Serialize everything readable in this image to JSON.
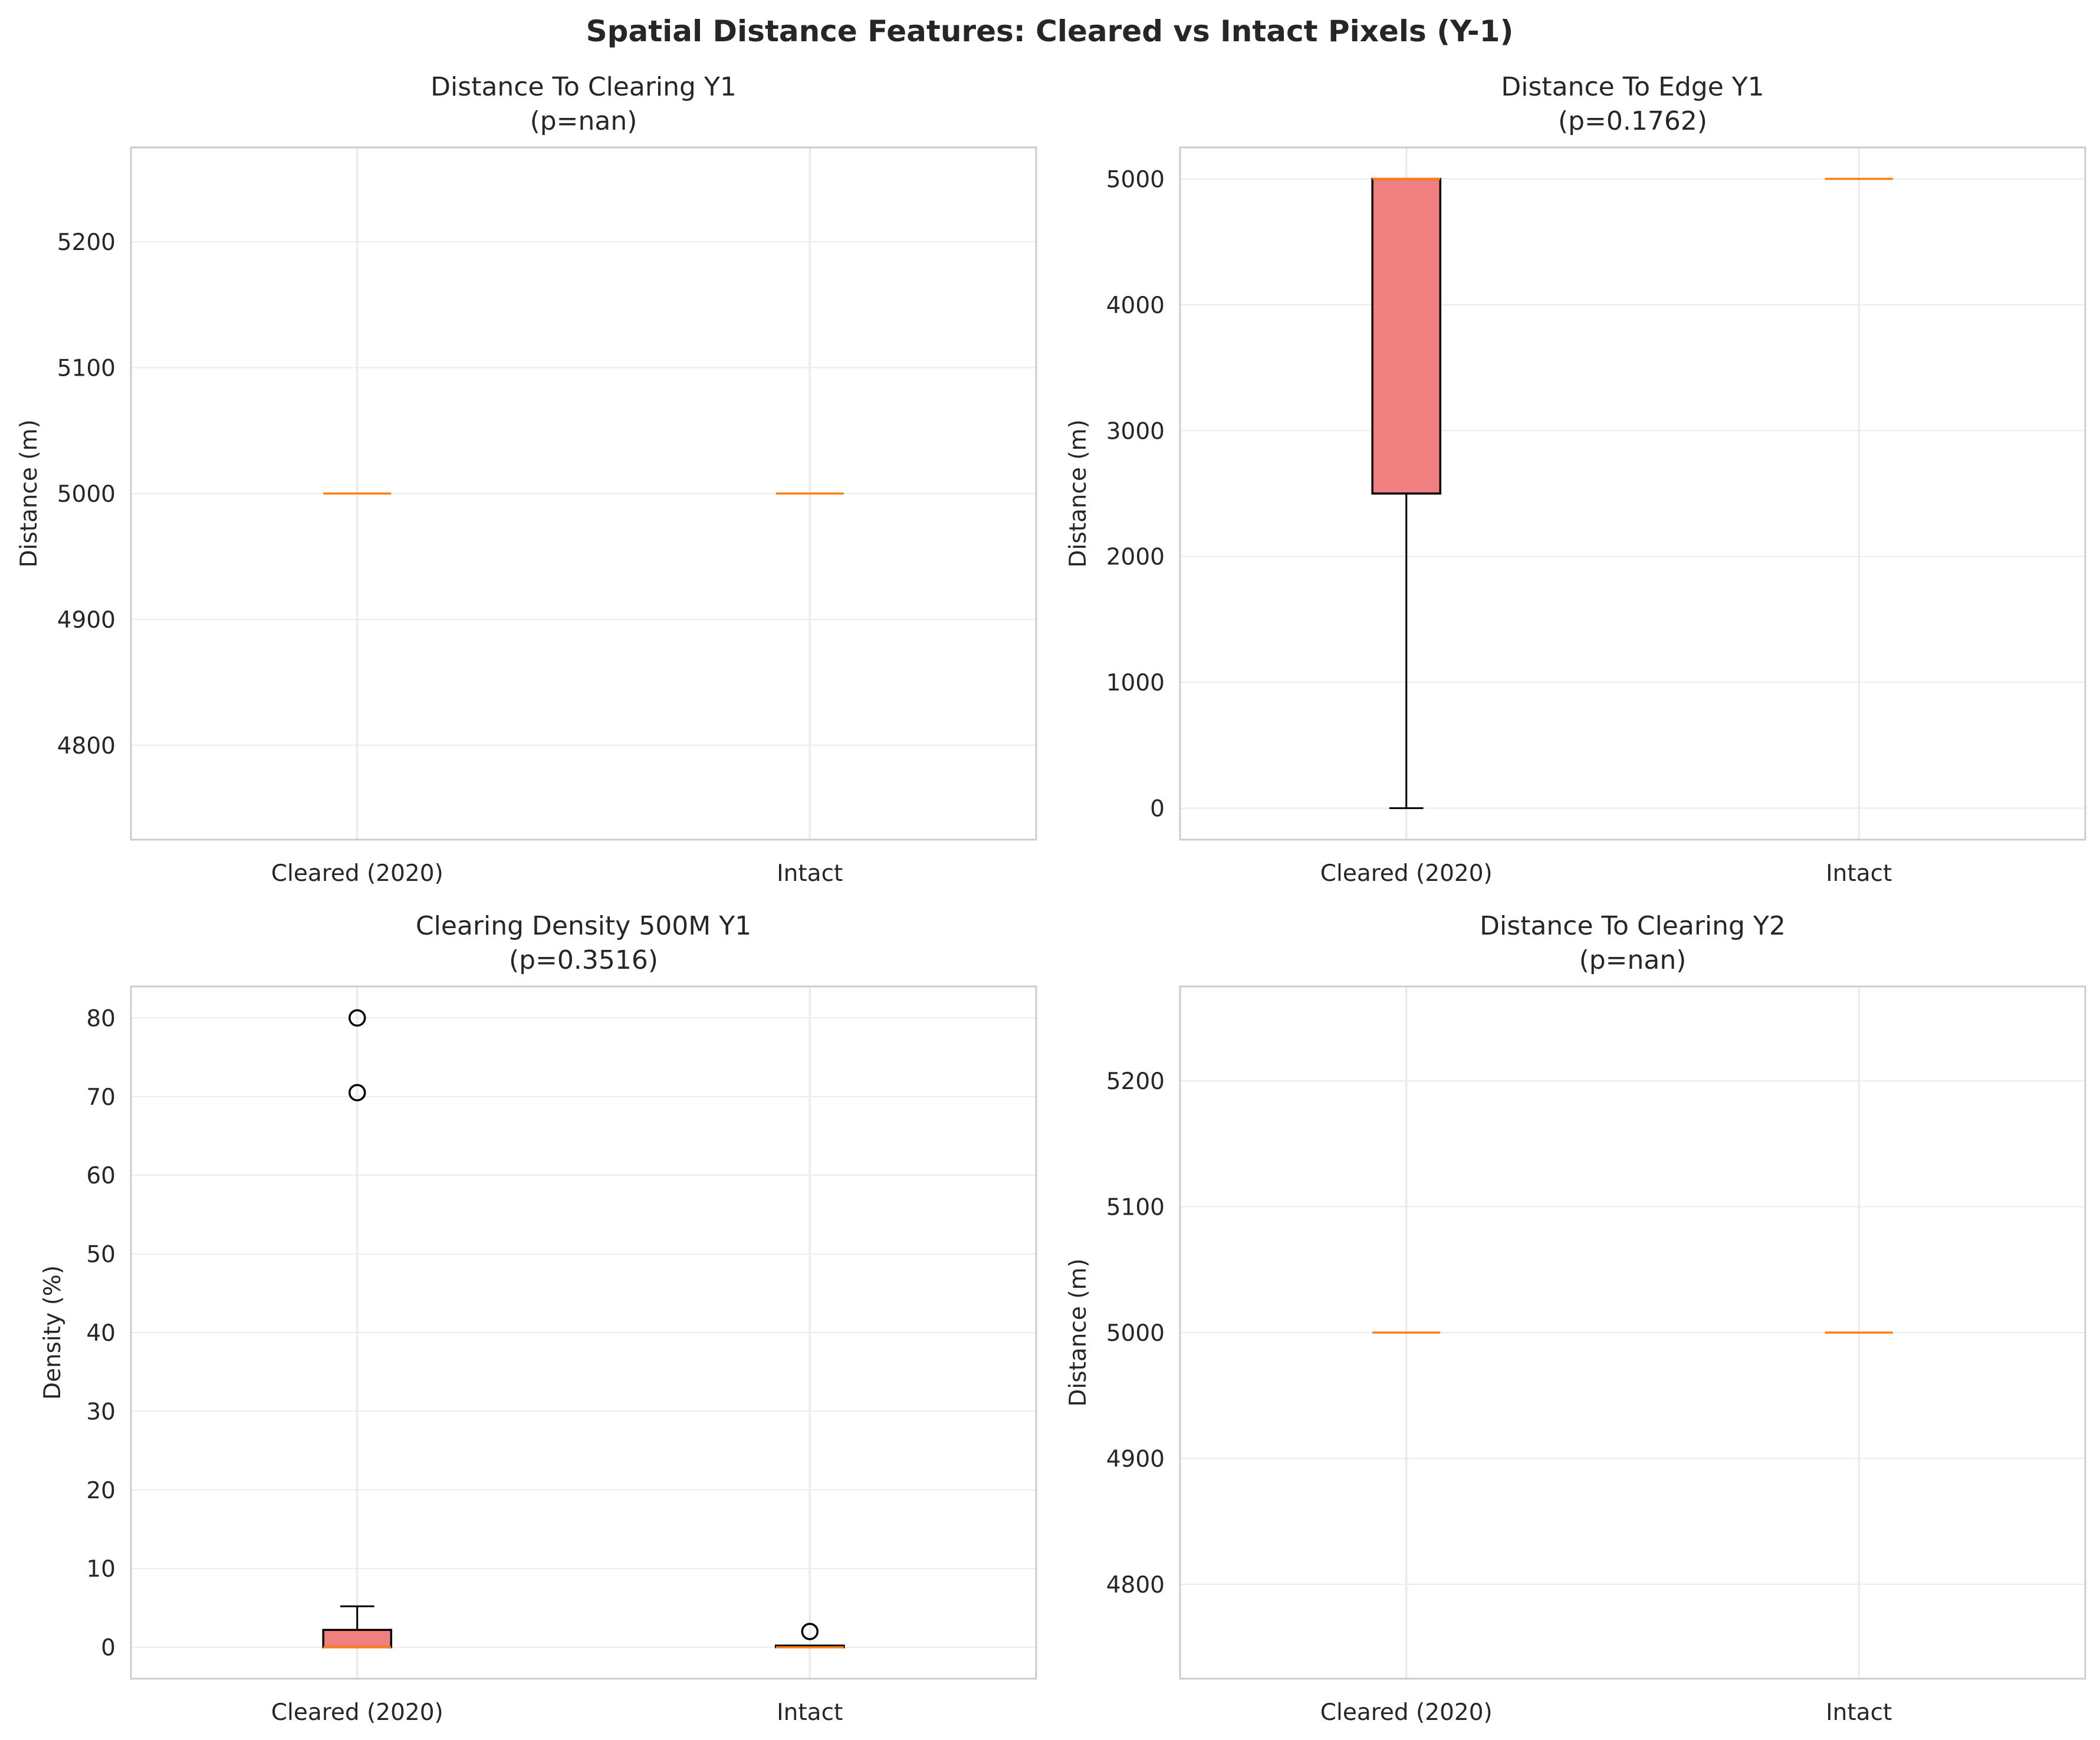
{
  "title": "Spatial Distance Features: Cleared vs Intact Pixels (Y-1)",
  "colors": {
    "box_fill": "#f08080",
    "median": "#ff7f0e",
    "whisker": "#000000",
    "grid": "#ebebeb",
    "spine": "#cccccc"
  },
  "chart_data": [
    {
      "type": "box",
      "title": "Distance To Clearing Y1",
      "subtitle": "(p=nan)",
      "ylabel": "Distance (m)",
      "categories": [
        "Cleared (2020)",
        "Intact"
      ],
      "ylim": [
        4725,
        5275
      ],
      "yticks": [
        4800,
        4900,
        5000,
        5100,
        5200
      ],
      "grid": true,
      "boxes": [
        {
          "category": "Cleared (2020)",
          "min": 5000,
          "q1": 5000,
          "median": 5000,
          "q3": 5000,
          "max": 5000,
          "outliers": []
        },
        {
          "category": "Intact",
          "min": 5000,
          "q1": 5000,
          "median": 5000,
          "q3": 5000,
          "max": 5000,
          "outliers": []
        }
      ]
    },
    {
      "type": "box",
      "title": "Distance To Edge Y1",
      "subtitle": "(p=0.1762)",
      "ylabel": "Distance (m)",
      "categories": [
        "Cleared (2020)",
        "Intact"
      ],
      "ylim": [
        -250,
        5250
      ],
      "yticks": [
        0,
        1000,
        2000,
        3000,
        4000,
        5000
      ],
      "grid": true,
      "boxes": [
        {
          "category": "Cleared (2020)",
          "min": 0,
          "q1": 2500,
          "median": 5000,
          "q3": 5000,
          "max": 5000,
          "outliers": []
        },
        {
          "category": "Intact",
          "min": 5000,
          "q1": 5000,
          "median": 5000,
          "q3": 5000,
          "max": 5000,
          "outliers": []
        }
      ]
    },
    {
      "type": "box",
      "title": "Clearing Density 500M Y1",
      "subtitle": "(p=0.3516)",
      "ylabel": "Density (%)",
      "categories": [
        "Cleared (2020)",
        "Intact"
      ],
      "ylim": [
        -4,
        84
      ],
      "yticks": [
        0,
        10,
        20,
        30,
        40,
        50,
        60,
        70,
        80
      ],
      "grid": true,
      "boxes": [
        {
          "category": "Cleared (2020)",
          "min": 0,
          "q1": 0,
          "median": 0,
          "q3": 2.2,
          "max": 5.2,
          "outliers": [
            70.5,
            80
          ]
        },
        {
          "category": "Intact",
          "min": 0,
          "q1": 0,
          "median": 0,
          "q3": 0.2,
          "max": 0.2,
          "outliers": [
            2
          ]
        }
      ]
    },
    {
      "type": "box",
      "title": "Distance To Clearing Y2",
      "subtitle": "(p=nan)",
      "ylabel": "Distance (m)",
      "categories": [
        "Cleared (2020)",
        "Intact"
      ],
      "ylim": [
        4725,
        5275
      ],
      "yticks": [
        4800,
        4900,
        5000,
        5100,
        5200
      ],
      "grid": true,
      "boxes": [
        {
          "category": "Cleared (2020)",
          "min": 5000,
          "q1": 5000,
          "median": 5000,
          "q3": 5000,
          "max": 5000,
          "outliers": []
        },
        {
          "category": "Intact",
          "min": 5000,
          "q1": 5000,
          "median": 5000,
          "q3": 5000,
          "max": 5000,
          "outliers": []
        }
      ]
    }
  ]
}
